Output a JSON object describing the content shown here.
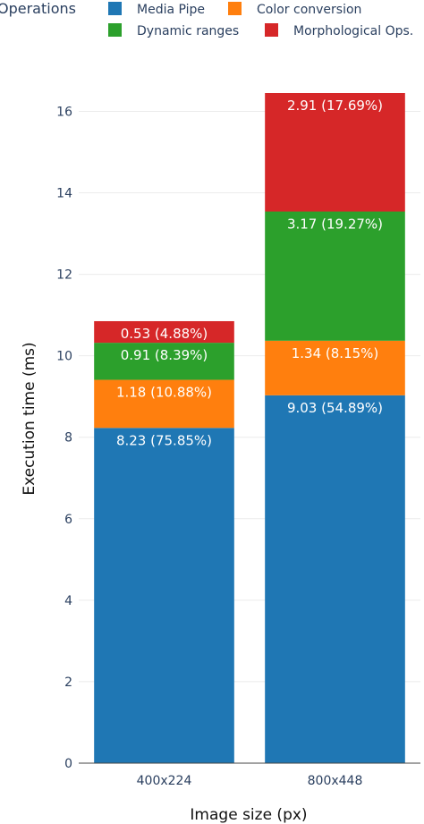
{
  "legend": {
    "title": "Operations",
    "items": [
      {
        "name": "Media Pipe",
        "color": "#1f77b4"
      },
      {
        "name": "Color conversion",
        "color": "#ff7f0e"
      },
      {
        "name": "Dynamic ranges",
        "color": "#2ca02c"
      },
      {
        "name": "Morphological Ops.",
        "color": "#d62728"
      }
    ]
  },
  "chart_data": {
    "type": "bar",
    "stacked": true,
    "categories": [
      "400x224",
      "800x448"
    ],
    "series": [
      {
        "name": "Media Pipe",
        "values": [
          8.23,
          9.03
        ],
        "labels": [
          "8.23 (75.85%)",
          "9.03 (54.89%)"
        ],
        "color": "#1f77b4"
      },
      {
        "name": "Color conversion",
        "values": [
          1.18,
          1.34
        ],
        "labels": [
          "1.18 (10.88%)",
          "1.34 (8.15%)"
        ],
        "color": "#ff7f0e"
      },
      {
        "name": "Dynamic ranges",
        "values": [
          0.91,
          3.17
        ],
        "labels": [
          "0.91 (8.39%)",
          "3.17 (19.27%)"
        ],
        "color": "#2ca02c"
      },
      {
        "name": "Morphological Ops.",
        "values": [
          0.53,
          2.91
        ],
        "labels": [
          "0.53 (4.88%)",
          "2.91 (17.69%)"
        ],
        "color": "#d62728"
      }
    ],
    "xlabel": "Image size (px)",
    "ylabel": "Execution time (ms)",
    "ylim": [
      0,
      16.45
    ],
    "yticks": [
      0,
      2,
      4,
      6,
      8,
      10,
      12,
      14,
      16
    ],
    "grid": true,
    "legend_position": "top"
  }
}
